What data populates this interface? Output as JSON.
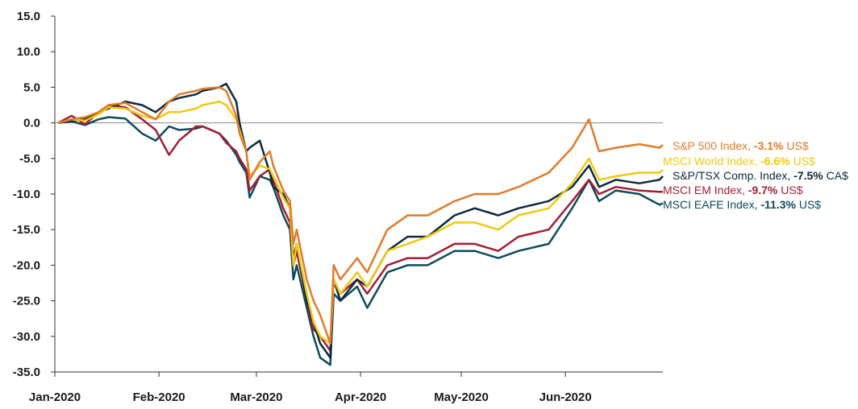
{
  "chart_data": {
    "type": "line",
    "title": "",
    "xlabel": "",
    "ylabel": "",
    "ylim": [
      -35,
      15
    ],
    "yticks": [
      15.0,
      10.0,
      5.0,
      0.0,
      -5.0,
      -10.0,
      -15.0,
      -20.0,
      -25.0,
      -30.0,
      -35.0
    ],
    "ytick_labels": [
      "15.0",
      "10.0",
      "5.0",
      "0.0",
      "-5.0",
      "-10.0",
      "-15.0",
      "-20.0",
      "-25.0",
      "-30.0",
      "-35.0"
    ],
    "x_dates": [
      "2020-01-02",
      "2020-01-06",
      "2020-01-10",
      "2020-01-14",
      "2020-01-17",
      "2020-01-22",
      "2020-01-27",
      "2020-01-31",
      "2020-02-04",
      "2020-02-07",
      "2020-02-12",
      "2020-02-14",
      "2020-02-19",
      "2020-02-21",
      "2020-02-24",
      "2020-02-25",
      "2020-02-27",
      "2020-02-28",
      "2020-03-02",
      "2020-03-05",
      "2020-03-06",
      "2020-03-09",
      "2020-03-11",
      "2020-03-12",
      "2020-03-13",
      "2020-03-16",
      "2020-03-18",
      "2020-03-20",
      "2020-03-23",
      "2020-03-24",
      "2020-03-26",
      "2020-03-31",
      "2020-04-03",
      "2020-04-09",
      "2020-04-15",
      "2020-04-21",
      "2020-04-29",
      "2020-05-05",
      "2020-05-12",
      "2020-05-18",
      "2020-05-27",
      "2020-06-03",
      "2020-06-08",
      "2020-06-11",
      "2020-06-16",
      "2020-06-23",
      "2020-06-29",
      "2020-06-30"
    ],
    "xtick_labels": [
      "Jan-2020",
      "Feb-2020",
      "Mar-2020",
      "Apr-2020",
      "May-2020",
      "Jun-2020"
    ],
    "xtick_dates": [
      "2020-01-01",
      "2020-02-01",
      "2020-03-01",
      "2020-04-01",
      "2020-05-01",
      "2020-06-01"
    ],
    "zero_line": true,
    "legend_position": "right",
    "series": [
      {
        "name": "MSCI EAFE Index",
        "value_text": "-11.3%",
        "currency": "US$",
        "color": "#0e4a5c",
        "values": [
          0,
          0.2,
          -0.3,
          0.5,
          0.8,
          0.6,
          -1.5,
          -2.5,
          -0.5,
          -1,
          -0.8,
          -0.5,
          -1.5,
          -2.5,
          -4.5,
          -5.5,
          -7,
          -10.5,
          -7.5,
          -8,
          -9,
          -13,
          -15,
          -22,
          -20,
          -26,
          -30,
          -33,
          -34,
          -24,
          -25,
          -23,
          -26,
          -21,
          -20,
          -20,
          -18,
          -18,
          -19,
          -18,
          -17,
          -12,
          -8,
          -11,
          -9.5,
          -10,
          -11.5,
          -11.3
        ]
      },
      {
        "name": "MSCI EM Index",
        "value_text": "-9.7%",
        "currency": "US$",
        "color": "#a31e35",
        "values": [
          0,
          1,
          -0.2,
          1.5,
          2.5,
          2.2,
          0.5,
          -1,
          -4.5,
          -2.5,
          -0.5,
          -0.5,
          -1.5,
          -2.8,
          -4,
          -5,
          -6.5,
          -9.5,
          -7.5,
          -6.5,
          -8,
          -12,
          -14,
          -20,
          -18,
          -25,
          -29,
          -30,
          -32,
          -22,
          -24,
          -22,
          -24,
          -20,
          -19,
          -19,
          -17,
          -17,
          -18,
          -16,
          -15,
          -11,
          -8,
          -10,
          -9,
          -9.5,
          -9.7,
          -9.7
        ]
      },
      {
        "name": "S&P/TSX Comp. Index",
        "value_text": "-7.5%",
        "currency": "CA$",
        "color": "#0d2a3d",
        "values": [
          0,
          0.3,
          0.5,
          1.5,
          2,
          3,
          2.5,
          1.5,
          3,
          3.5,
          4,
          4.5,
          5,
          5.5,
          3,
          0,
          -4,
          -3.5,
          -2.5,
          -7,
          -9,
          -10,
          -12,
          -19,
          -17,
          -25,
          -28,
          -31,
          -33,
          -22,
          -25,
          -22,
          -23,
          -18,
          -16,
          -16,
          -13,
          -12,
          -13,
          -12,
          -11,
          -9,
          -6,
          -9,
          -8,
          -8.5,
          -8,
          -7.5
        ]
      },
      {
        "name": "MSCI World Index",
        "value_text": "-6.6%",
        "currency": "US$",
        "color": "#f2c811",
        "values": [
          0,
          0.5,
          0.3,
          1.2,
          2.2,
          2,
          1,
          0.5,
          1.5,
          1.5,
          2,
          2.5,
          3,
          2.5,
          0.5,
          -1,
          -4,
          -7.5,
          -6,
          -6.5,
          -7.5,
          -10.5,
          -12,
          -20,
          -17,
          -24,
          -28,
          -30,
          -31,
          -22,
          -24,
          -21,
          -23,
          -18,
          -17,
          -16,
          -14,
          -14,
          -15,
          -13,
          -12,
          -8.5,
          -5,
          -8,
          -7.5,
          -7,
          -7,
          -6.6
        ]
      },
      {
        "name": "S&P 500 Index",
        "value_text": "-3.1%",
        "currency": "US$",
        "color": "#e07b2c",
        "values": [
          0,
          0.5,
          0.8,
          1.5,
          2.5,
          2.8,
          1.5,
          0.5,
          3,
          4,
          4.5,
          4.8,
          5,
          4.5,
          1,
          -1.5,
          -4,
          -8,
          -5.5,
          -4,
          -6,
          -9.5,
          -11,
          -17,
          -15,
          -22,
          -25,
          -27,
          -31,
          -20,
          -22,
          -19,
          -21,
          -15,
          -13,
          -13,
          -11,
          -10,
          -10,
          -9,
          -7,
          -3.5,
          0.5,
          -4,
          -3.5,
          -3,
          -3.5,
          -3.1
        ]
      }
    ]
  }
}
